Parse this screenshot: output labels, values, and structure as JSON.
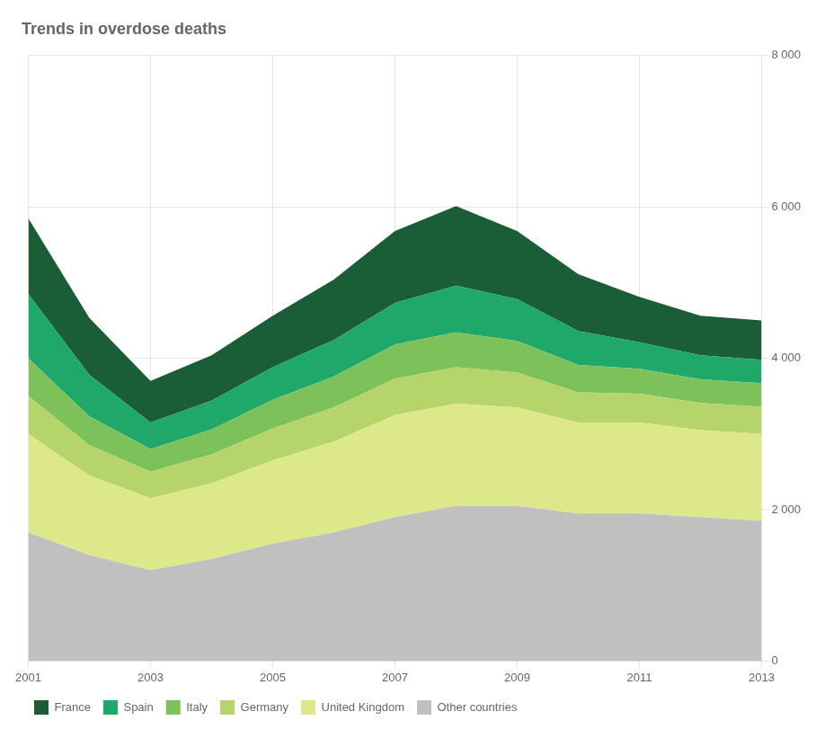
{
  "chart_data": {
    "type": "area",
    "title": "Trends in overdose deaths",
    "x": [
      2001,
      2002,
      2003,
      2004,
      2005,
      2006,
      2007,
      2008,
      2009,
      2010,
      2011,
      2012,
      2013
    ],
    "series": [
      {
        "name": "Other countries",
        "color": "#c0c0c0",
        "values": [
          1700,
          1400,
          1200,
          1350,
          1550,
          1700,
          1900,
          2050,
          2050,
          1950,
          1950,
          1900,
          1850
        ]
      },
      {
        "name": "United Kingdom",
        "color": "#dce88a",
        "values": [
          1300,
          1050,
          950,
          1000,
          1100,
          1200,
          1350,
          1350,
          1300,
          1200,
          1200,
          1150,
          1150
        ]
      },
      {
        "name": "Germany",
        "color": "#b5d46a",
        "values": [
          500,
          400,
          350,
          380,
          420,
          450,
          480,
          480,
          460,
          400,
          380,
          360,
          360
        ]
      },
      {
        "name": "Italy",
        "color": "#7dc15a",
        "values": [
          500,
          380,
          300,
          330,
          380,
          410,
          450,
          460,
          420,
          360,
          330,
          310,
          310
        ]
      },
      {
        "name": "Spain",
        "color": "#20a86a",
        "values": [
          850,
          550,
          350,
          380,
          430,
          480,
          550,
          620,
          550,
          450,
          350,
          320,
          310
        ]
      },
      {
        "name": "France",
        "color": "#1a5e38",
        "values": [
          1000,
          750,
          550,
          600,
          680,
          800,
          950,
          1050,
          900,
          750,
          600,
          520,
          520
        ]
      }
    ],
    "xlim": [
      2001,
      2013
    ],
    "xticks": [
      2001,
      2003,
      2005,
      2007,
      2009,
      2011,
      2013
    ],
    "ylim": [
      0,
      8000
    ],
    "yticks": [
      0,
      {
        "value": 2000,
        "label": "2 000"
      },
      {
        "value": 4000,
        "label": "4 000"
      },
      {
        "value": 6000,
        "label": "6 000"
      },
      {
        "value": 8000,
        "label": "8 000"
      }
    ],
    "stacked": true,
    "grid": true,
    "legend": "bottom"
  }
}
